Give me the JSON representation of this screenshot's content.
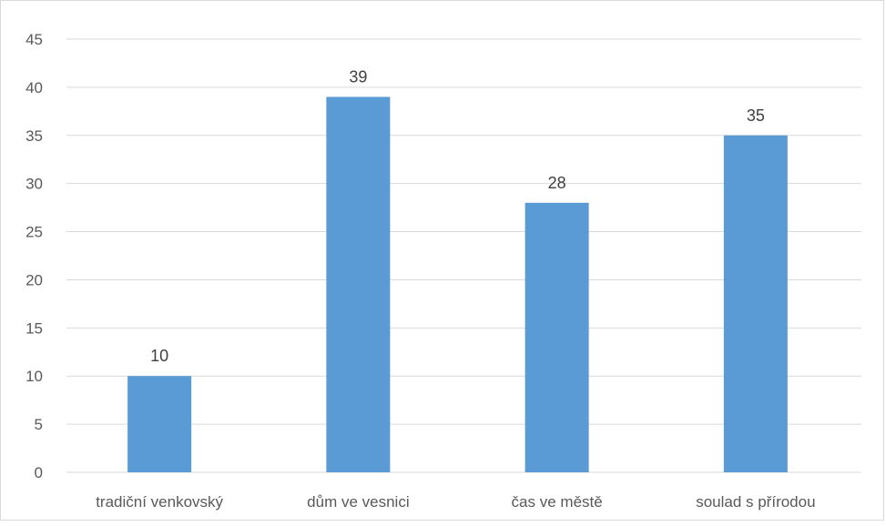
{
  "chart_data": {
    "type": "bar",
    "categories": [
      "tradiční venkovský",
      "dům ve vesnici",
      "čas ve městě",
      "soulad s přírodou"
    ],
    "values": [
      10,
      39,
      28,
      35
    ],
    "data_labels": [
      "10",
      "39",
      "28",
      "35"
    ],
    "title": "",
    "xlabel": "",
    "ylabel": "",
    "ylim": [
      0,
      45
    ],
    "yticks": [
      0,
      5,
      10,
      15,
      20,
      25,
      30,
      35,
      40,
      45
    ],
    "grid": true,
    "legend": "none",
    "bar_color": "#5b9bd5",
    "grid_color": "#d9d9d9",
    "text_color": "#595959"
  }
}
